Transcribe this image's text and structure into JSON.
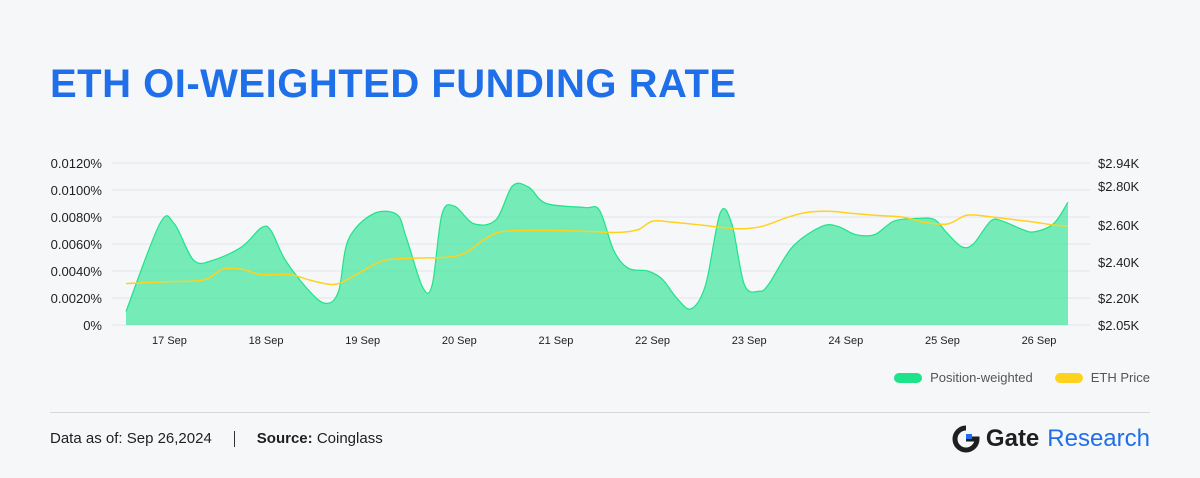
{
  "header": {
    "title": "ETH OI-WEIGHTED FUNDING RATE"
  },
  "legend": [
    {
      "label": "Position-weighted",
      "color": "#1fe38a"
    },
    {
      "label": "ETH Price",
      "color": "#ffd21f"
    }
  ],
  "footer": {
    "data_label": "Data as of:",
    "data_value": "Sep 26,2024",
    "source_label": "Source:",
    "source_value": "Coinglass"
  },
  "brand": {
    "name": "Gate",
    "suffix": "Research",
    "accent": "#1f6fe8"
  },
  "chart_data": {
    "type": "area",
    "categories": [
      "17 Sep",
      "18 Sep",
      "19 Sep",
      "20 Sep",
      "21 Sep",
      "22 Sep",
      "23 Sep",
      "24 Sep",
      "25 Sep",
      "26 Sep"
    ],
    "left_axis": {
      "ticks": [
        "0%",
        "0.0020%",
        "0.0040%",
        "0.0060%",
        "0.0080%",
        "0.0100%",
        "0.0120%"
      ],
      "tick_values": [
        0,
        0.002,
        0.004,
        0.006,
        0.008,
        0.01,
        0.012
      ],
      "ylim": [
        0,
        0.012
      ]
    },
    "right_axis": {
      "ticks": [
        "$2.05K",
        "$2.20K",
        "$2.40K",
        "$2.60K",
        "$2.80K",
        "$2.94K"
      ],
      "tick_values": [
        2050,
        2200,
        2400,
        2600,
        2800,
        2940
      ],
      "ylim": [
        2050,
        2940
      ]
    },
    "x_range": [
      16.55,
      26.3
    ],
    "grid": true,
    "series": [
      {
        "name": "Position-weighted",
        "axis": "left",
        "color": "#1fe38a",
        "points": [
          [
            16.55,
            0.001
          ],
          [
            16.9,
            0.0075
          ],
          [
            17.05,
            0.0075
          ],
          [
            17.25,
            0.0048
          ],
          [
            17.45,
            0.0048
          ],
          [
            17.75,
            0.0058
          ],
          [
            17.95,
            0.0072
          ],
          [
            18.05,
            0.007
          ],
          [
            18.2,
            0.0048
          ],
          [
            18.45,
            0.0025
          ],
          [
            18.62,
            0.0016
          ],
          [
            18.75,
            0.0025
          ],
          [
            18.85,
            0.0063
          ],
          [
            19.1,
            0.0082
          ],
          [
            19.35,
            0.0082
          ],
          [
            19.45,
            0.0065
          ],
          [
            19.62,
            0.0028
          ],
          [
            19.72,
            0.003
          ],
          [
            19.82,
            0.0082
          ],
          [
            19.95,
            0.0088
          ],
          [
            20.15,
            0.0075
          ],
          [
            20.38,
            0.0078
          ],
          [
            20.55,
            0.0103
          ],
          [
            20.72,
            0.0102
          ],
          [
            20.9,
            0.009
          ],
          [
            21.3,
            0.0087
          ],
          [
            21.45,
            0.0085
          ],
          [
            21.6,
            0.0055
          ],
          [
            21.75,
            0.0042
          ],
          [
            21.95,
            0.004
          ],
          [
            22.1,
            0.0034
          ],
          [
            22.25,
            0.002
          ],
          [
            22.4,
            0.0012
          ],
          [
            22.55,
            0.003
          ],
          [
            22.7,
            0.0083
          ],
          [
            22.82,
            0.0075
          ],
          [
            22.95,
            0.003
          ],
          [
            23.1,
            0.0025
          ],
          [
            23.2,
            0.003
          ],
          [
            23.45,
            0.0058
          ],
          [
            23.75,
            0.0073
          ],
          [
            23.92,
            0.0073
          ],
          [
            24.1,
            0.0067
          ],
          [
            24.3,
            0.0067
          ],
          [
            24.5,
            0.0077
          ],
          [
            24.75,
            0.0079
          ],
          [
            24.92,
            0.0078
          ],
          [
            25.05,
            0.0068
          ],
          [
            25.2,
            0.0058
          ],
          [
            25.32,
            0.006
          ],
          [
            25.5,
            0.0077
          ],
          [
            25.62,
            0.0077
          ],
          [
            25.82,
            0.0071
          ],
          [
            25.95,
            0.0069
          ],
          [
            26.15,
            0.0075
          ],
          [
            26.3,
            0.0091
          ]
        ]
      },
      {
        "name": "ETH Price",
        "axis": "right",
        "color": "#ffd21f",
        "points": [
          [
            16.55,
            2280
          ],
          [
            16.95,
            2290
          ],
          [
            17.35,
            2300
          ],
          [
            17.55,
            2360
          ],
          [
            17.75,
            2360
          ],
          [
            17.95,
            2330
          ],
          [
            18.25,
            2330
          ],
          [
            18.45,
            2300
          ],
          [
            18.7,
            2275
          ],
          [
            18.9,
            2320
          ],
          [
            19.2,
            2405
          ],
          [
            19.5,
            2420
          ],
          [
            19.85,
            2425
          ],
          [
            20.05,
            2445
          ],
          [
            20.2,
            2500
          ],
          [
            20.4,
            2560
          ],
          [
            20.7,
            2570
          ],
          [
            21.0,
            2570
          ],
          [
            21.35,
            2565
          ],
          [
            21.65,
            2560
          ],
          [
            21.85,
            2575
          ],
          [
            22.0,
            2620
          ],
          [
            22.2,
            2615
          ],
          [
            22.5,
            2600
          ],
          [
            22.75,
            2585
          ],
          [
            22.95,
            2580
          ],
          [
            23.15,
            2595
          ],
          [
            23.4,
            2640
          ],
          [
            23.6,
            2665
          ],
          [
            23.85,
            2670
          ],
          [
            24.05,
            2660
          ],
          [
            24.3,
            2650
          ],
          [
            24.6,
            2640
          ],
          [
            24.8,
            2615
          ],
          [
            25.05,
            2605
          ],
          [
            25.25,
            2650
          ],
          [
            25.45,
            2645
          ],
          [
            25.7,
            2630
          ],
          [
            25.95,
            2615
          ],
          [
            26.15,
            2600
          ],
          [
            26.3,
            2595
          ]
        ]
      }
    ]
  }
}
